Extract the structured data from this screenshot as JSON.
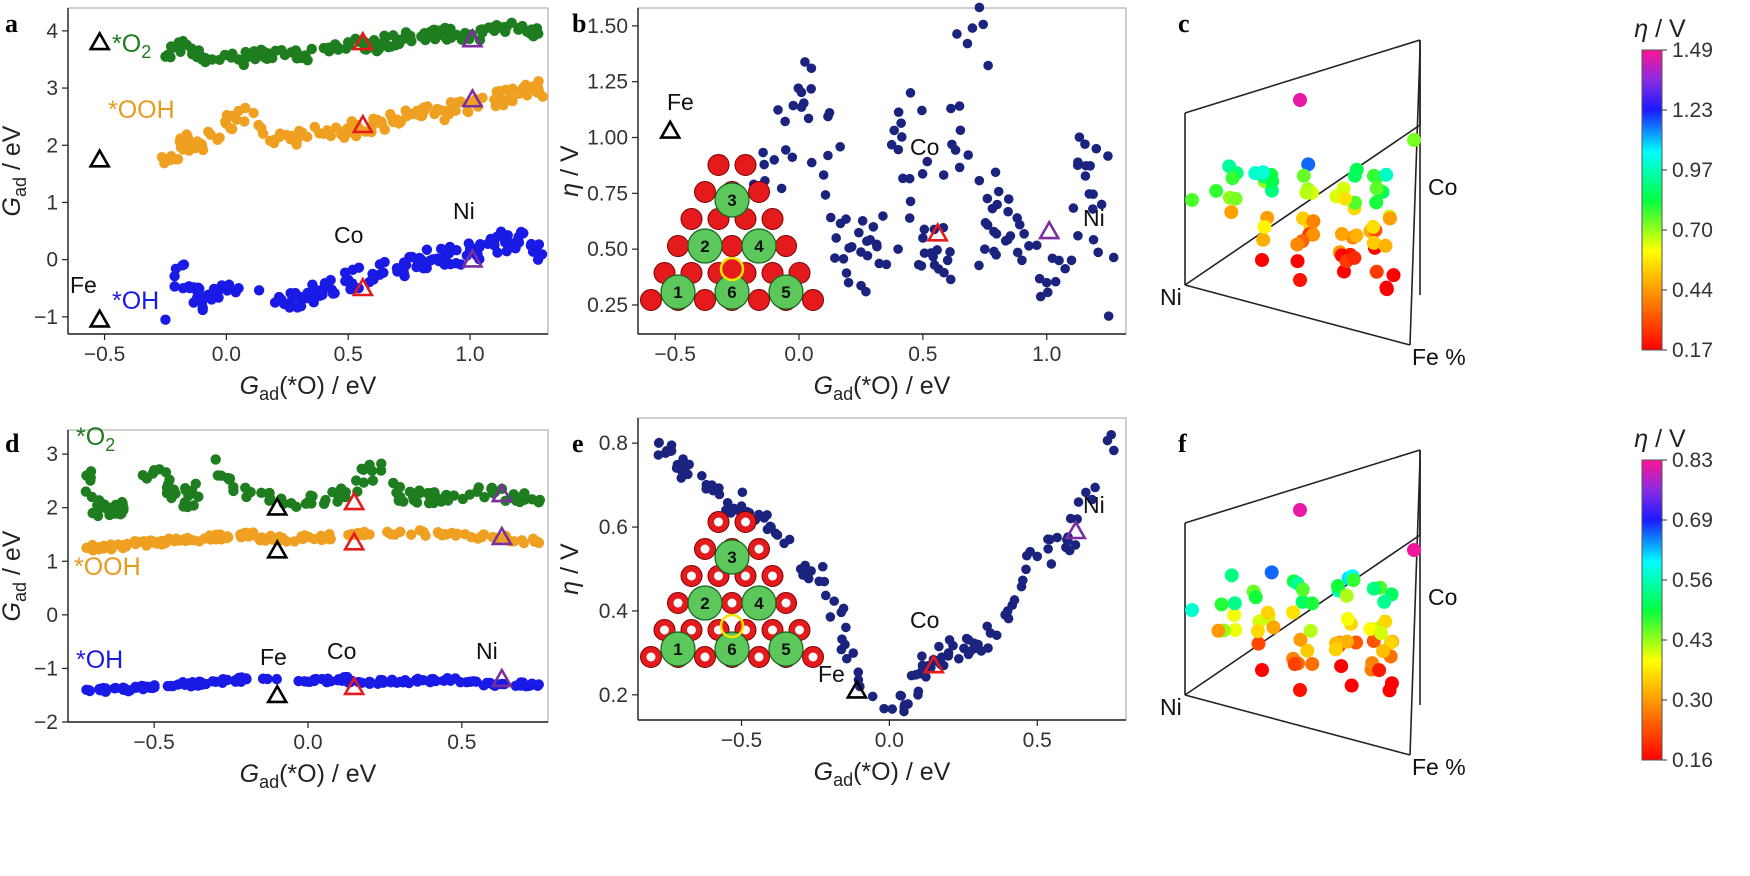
{
  "chart_data": [
    {
      "panel": "a",
      "type": "scatter",
      "xlabel": "G_ad(*O) / eV",
      "ylabel": "G_ad / eV",
      "xlim": [
        -0.65,
        1.32
      ],
      "ylim": [
        -1.3,
        4.4
      ],
      "xticks": [
        -0.5,
        0.0,
        0.5,
        1.0
      ],
      "xtick_labels": [
        "−0.5",
        "0.0",
        "0.5",
        "1.0"
      ],
      "yticks": [
        -1,
        0,
        1,
        2,
        3,
        4
      ],
      "ytick_labels": [
        "−1",
        "0",
        "1",
        "2",
        "3",
        "4"
      ],
      "grid": false,
      "series": [
        {
          "name": "*O₂",
          "color": "#1e7d1e",
          "x_range": [
            -0.25,
            1.28
          ],
          "y_trend": [
            3.5,
            4.0
          ],
          "count": 150,
          "points": [
            [
              -0.25,
              3.55
            ],
            [
              -0.18,
              3.75
            ],
            [
              -0.1,
              3.5
            ],
            [
              0.05,
              3.5
            ],
            [
              0.15,
              3.6
            ],
            [
              0.3,
              3.55
            ],
            [
              0.4,
              3.7
            ],
            [
              0.5,
              3.8
            ],
            [
              0.6,
              3.75
            ],
            [
              0.7,
              3.85
            ],
            [
              0.8,
              3.9
            ],
            [
              0.9,
              3.95
            ],
            [
              1.0,
              3.9
            ],
            [
              1.1,
              4.0
            ],
            [
              1.2,
              4.05
            ],
            [
              1.28,
              3.95
            ]
          ]
        },
        {
          "name": "*OOH",
          "color": "#f0a020",
          "x_range": [
            -0.25,
            1.28
          ],
          "y_trend": [
            1.9,
            3.0
          ],
          "count": 150,
          "points": [
            [
              -0.25,
              1.75
            ],
            [
              -0.15,
              2.05
            ],
            [
              -0.1,
              1.95
            ],
            [
              0.05,
              2.6
            ],
            [
              0.2,
              2.1
            ],
            [
              0.3,
              2.15
            ],
            [
              0.4,
              2.2
            ],
            [
              0.5,
              2.3
            ],
            [
              0.6,
              2.35
            ],
            [
              0.7,
              2.45
            ],
            [
              0.8,
              2.55
            ],
            [
              0.9,
              2.6
            ],
            [
              1.0,
              2.75
            ],
            [
              1.1,
              2.8
            ],
            [
              1.2,
              2.9
            ],
            [
              1.28,
              3.0
            ]
          ]
        },
        {
          "name": "*OH",
          "color": "#1a1ae6",
          "x_range": [
            -0.25,
            1.28
          ],
          "y_trend": [
            -1.0,
            0.3
          ],
          "count": 150,
          "points": [
            [
              -0.25,
              -1.05
            ],
            [
              -0.18,
              -0.1
            ],
            [
              -0.1,
              -0.75
            ],
            [
              0.05,
              -0.5
            ],
            [
              0.2,
              -0.75
            ],
            [
              0.3,
              -0.65
            ],
            [
              0.4,
              -0.5
            ],
            [
              0.5,
              -0.35
            ],
            [
              0.6,
              -0.25
            ],
            [
              0.7,
              -0.15
            ],
            [
              0.8,
              0.0
            ],
            [
              0.9,
              0.05
            ],
            [
              1.0,
              0.15
            ],
            [
              1.1,
              0.25
            ],
            [
              1.2,
              0.4
            ],
            [
              1.28,
              0.1
            ]
          ]
        }
      ],
      "markers": [
        {
          "label": "Fe",
          "color": "#000000",
          "x": -0.52,
          "y": [
            3.8,
            1.75,
            -1.05
          ]
        },
        {
          "label": "Co",
          "color": "#e41a1c",
          "x": 0.56,
          "y": [
            3.8,
            2.35,
            -0.5
          ]
        },
        {
          "label": "Ni",
          "color": "#7b2f9e",
          "x": 1.01,
          "y": [
            3.85,
            2.8,
            0.0
          ]
        }
      ]
    },
    {
      "panel": "b",
      "type": "scatter",
      "xlabel": "G_ad(*O) / eV",
      "ylabel": "η / V",
      "xlim": [
        -0.65,
        1.32
      ],
      "ylim": [
        0.12,
        1.58
      ],
      "xticks": [
        -0.5,
        0.0,
        0.5,
        1.0
      ],
      "xtick_labels": [
        "−0.5",
        "0.0",
        "0.5",
        "1.0"
      ],
      "yticks": [
        0.25,
        0.5,
        0.75,
        1.0,
        1.25,
        1.5
      ],
      "ytick_labels": [
        "0.25",
        "0.50",
        "0.75",
        "1.00",
        "1.25",
        "1.50"
      ],
      "grid": false,
      "series": [
        {
          "name": "",
          "color": "#1a237e",
          "count": 150,
          "points": [
            [
              -0.15,
              0.78
            ],
            [
              -0.1,
              0.9
            ],
            [
              0.05,
              1.31
            ],
            [
              0.15,
              0.55
            ],
            [
              0.2,
              0.35
            ],
            [
              0.3,
              0.6
            ],
            [
              0.4,
              0.5
            ],
            [
              0.45,
              1.2
            ],
            [
              0.5,
              0.55
            ],
            [
              0.6,
              0.45
            ],
            [
              0.7,
              1.49
            ],
            [
              0.75,
              0.5
            ],
            [
              0.8,
              0.7
            ],
            [
              0.9,
              0.45
            ],
            [
              1.0,
              0.35
            ],
            [
              1.1,
              0.45
            ],
            [
              1.2,
              0.95
            ],
            [
              1.25,
              0.2
            ]
          ]
        }
      ],
      "markers": [
        {
          "label": "Fe",
          "color": "#000000",
          "x": -0.52,
          "y": 1.03
        },
        {
          "label": "Co",
          "color": "#e41a1c",
          "x": 0.56,
          "y": 0.57
        },
        {
          "label": "Ni",
          "color": "#7b2f9e",
          "x": 1.01,
          "y": 0.58
        }
      ],
      "inset_sites": [
        "1",
        "2",
        "3",
        "4",
        "5",
        "6"
      ]
    },
    {
      "panel": "c",
      "type": "scatter",
      "axis_labels": [
        "Co",
        "Ni",
        "Fe %"
      ],
      "colorbar_title": "η / V",
      "colorbar_ticks": [
        "1.49",
        "1.23",
        "0.97",
        "0.70",
        "0.44",
        "0.17"
      ],
      "colorbar_range": [
        0.17,
        1.49
      ]
    },
    {
      "panel": "d",
      "type": "scatter",
      "xlabel": "G_ad(*O) / eV",
      "ylabel": "G_ad / eV",
      "xlim": [
        -0.78,
        0.78
      ],
      "ylim": [
        -2.0,
        3.45
      ],
      "xticks": [
        -0.5,
        0.0,
        0.5
      ],
      "xtick_labels": [
        "−0.5",
        "0.0",
        "0.5"
      ],
      "yticks": [
        -2,
        -1,
        0,
        1,
        2,
        3
      ],
      "ytick_labels": [
        "−2",
        "−1",
        "0",
        "1",
        "2",
        "3"
      ],
      "grid": false,
      "series": [
        {
          "name": "*O₂",
          "color": "#1e7d1e",
          "count": 150,
          "points": [
            [
              -0.7,
              1.9
            ],
            [
              -0.72,
              2.6
            ],
            [
              -0.6,
              2.0
            ],
            [
              -0.5,
              2.7
            ],
            [
              -0.4,
              2.1
            ],
            [
              -0.3,
              2.9
            ],
            [
              -0.2,
              2.2
            ],
            [
              0.0,
              2.1
            ],
            [
              0.1,
              2.2
            ],
            [
              0.2,
              2.8
            ],
            [
              0.3,
              2.2
            ],
            [
              0.4,
              2.2
            ],
            [
              0.6,
              2.3
            ],
            [
              0.75,
              2.1
            ]
          ]
        },
        {
          "name": "*OOH",
          "color": "#f0a020",
          "count": 150,
          "points": [
            [
              -0.72,
              1.25
            ],
            [
              -0.6,
              1.3
            ],
            [
              -0.5,
              1.35
            ],
            [
              -0.4,
              1.4
            ],
            [
              -0.3,
              1.45
            ],
            [
              -0.2,
              1.5
            ],
            [
              -0.1,
              1.4
            ],
            [
              0.05,
              1.45
            ],
            [
              0.2,
              1.5
            ],
            [
              0.3,
              1.55
            ],
            [
              0.45,
              1.5
            ],
            [
              0.6,
              1.45
            ],
            [
              0.75,
              1.35
            ]
          ]
        },
        {
          "name": "*OH",
          "color": "#1a1ae6",
          "count": 150,
          "points": [
            [
              -0.72,
              -1.4
            ],
            [
              -0.6,
              -1.4
            ],
            [
              -0.5,
              -1.35
            ],
            [
              -0.4,
              -1.3
            ],
            [
              -0.3,
              -1.25
            ],
            [
              -0.2,
              -1.2
            ],
            [
              0.0,
              -1.25
            ],
            [
              0.1,
              -1.2
            ],
            [
              0.2,
              -1.25
            ],
            [
              0.3,
              -1.25
            ],
            [
              0.45,
              -1.2
            ],
            [
              0.6,
              -1.3
            ],
            [
              0.75,
              -1.3
            ]
          ]
        }
      ],
      "markers": [
        {
          "label": "Fe",
          "color": "#000000",
          "x": -0.1,
          "y": [
            2.0,
            1.2,
            -1.5
          ]
        },
        {
          "label": "Co",
          "color": "#e41a1c",
          "x": 0.15,
          "y": [
            2.1,
            1.35,
            -1.35
          ]
        },
        {
          "label": "Ni",
          "color": "#7b2f9e",
          "x": 0.63,
          "y": [
            2.25,
            1.45,
            -1.2
          ]
        }
      ]
    },
    {
      "panel": "e",
      "type": "scatter",
      "xlabel": "G_ad(*O) / eV",
      "ylabel": "η / V",
      "xlim": [
        -0.85,
        0.8
      ],
      "ylim": [
        0.14,
        0.86
      ],
      "xticks": [
        -0.5,
        0.0,
        0.5
      ],
      "xtick_labels": [
        "−0.5",
        "0.0",
        "0.5"
      ],
      "yticks": [
        0.2,
        0.4,
        0.6,
        0.8
      ],
      "ytick_labels": [
        "0.2",
        "0.4",
        "0.6",
        "0.8"
      ],
      "grid": false,
      "series": [
        {
          "name": "",
          "color": "#1a237e",
          "count": 150,
          "points": [
            [
              -0.78,
              0.8
            ],
            [
              -0.7,
              0.75
            ],
            [
              -0.6,
              0.7
            ],
            [
              -0.5,
              0.65
            ],
            [
              -0.4,
              0.6
            ],
            [
              -0.3,
              0.5
            ],
            [
              -0.22,
              0.47
            ],
            [
              -0.15,
              0.32
            ],
            [
              -0.1,
              0.22
            ],
            [
              0.05,
              0.17
            ],
            [
              0.1,
              0.25
            ],
            [
              0.2,
              0.3
            ],
            [
              0.3,
              0.32
            ],
            [
              0.4,
              0.4
            ],
            [
              0.5,
              0.53
            ],
            [
              0.6,
              0.57
            ],
            [
              0.75,
              0.82
            ]
          ]
        }
      ],
      "markers": [
        {
          "label": "Fe",
          "color": "#000000",
          "x": -0.11,
          "y": 0.21
        },
        {
          "label": "Co",
          "color": "#e41a1c",
          "x": 0.15,
          "y": 0.27
        },
        {
          "label": "Ni",
          "color": "#7b2f9e",
          "x": 0.63,
          "y": 0.59
        }
      ],
      "inset_sites": [
        "1",
        "2",
        "3",
        "4",
        "5",
        "6"
      ]
    },
    {
      "panel": "f",
      "type": "scatter",
      "axis_labels": [
        "Co",
        "Ni",
        "Fe %"
      ],
      "colorbar_title": "η / V",
      "colorbar_ticks": [
        "0.83",
        "0.69",
        "0.56",
        "0.43",
        "0.30",
        "0.16"
      ],
      "colorbar_range": [
        0.16,
        0.83
      ]
    }
  ]
}
